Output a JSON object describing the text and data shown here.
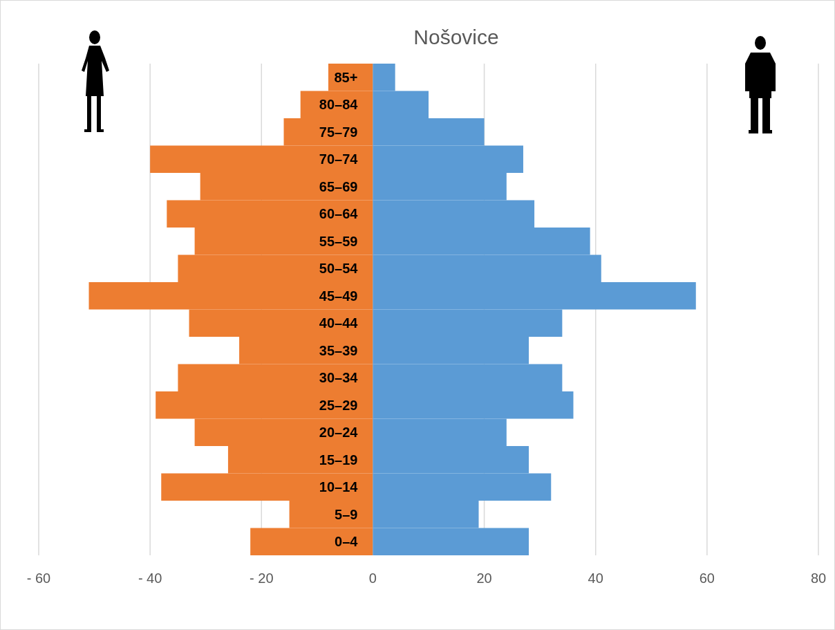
{
  "chart_data": {
    "type": "bar",
    "orientation": "horizontal",
    "title": "Nošovice",
    "categories": [
      "85+",
      "80–84",
      "75–79",
      "70–74",
      "65–69",
      "60–64",
      "55–59",
      "50–54",
      "45–49",
      "40–44",
      "35–39",
      "30–34",
      "25–29",
      "20–24",
      "15–19",
      "10–14",
      "5–9",
      "0–4"
    ],
    "series": [
      {
        "color": "#ed7d31",
        "values": [
          -8,
          -13,
          -16,
          -40,
          -31,
          -37,
          -32,
          -35,
          -51,
          -33,
          -24,
          -35,
          -39,
          -32,
          -26,
          -38,
          -15,
          -22
        ]
      },
      {
        "color": "#5b9bd5",
        "values": [
          4,
          10,
          20,
          27,
          24,
          29,
          39,
          41,
          58,
          34,
          28,
          34,
          36,
          24,
          28,
          32,
          19,
          28
        ]
      }
    ],
    "xlim": [
      -60,
      80
    ],
    "xticks": [
      {
        "value": -60,
        "label": "- 60"
      },
      {
        "value": -40,
        "label": "- 40"
      },
      {
        "value": -20,
        "label": "- 20"
      },
      0,
      20,
      40,
      60,
      80
    ],
    "grid": "x",
    "stacked": true
  }
}
